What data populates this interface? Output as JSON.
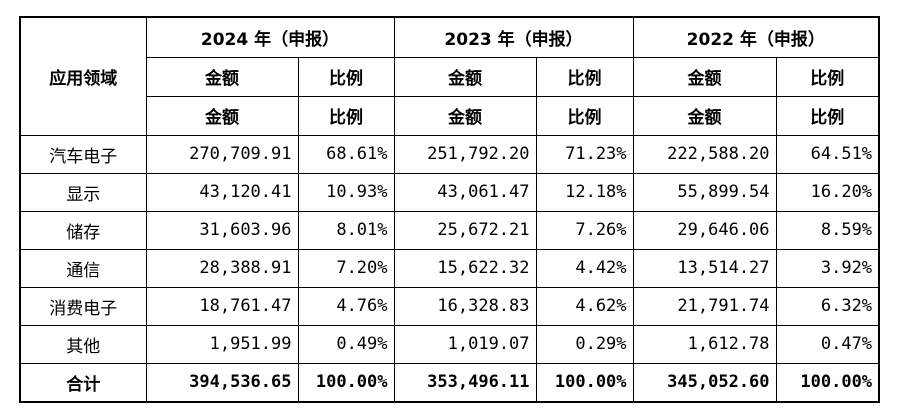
{
  "table": {
    "field_header": "应用领域",
    "years": [
      {
        "label": "2024 年（申报）"
      },
      {
        "label": "2023 年（申报）"
      },
      {
        "label": "2022 年（申报）"
      }
    ],
    "amount_label": "金额",
    "ratio_label": "比例",
    "rows": [
      {
        "field": "汽车电子",
        "v2024_amount": "270,709.91",
        "v2024_ratio": "68.61%",
        "v2023_amount": "251,792.20",
        "v2023_ratio": "71.23%",
        "v2022_amount": "222,588.20",
        "v2022_ratio": "64.51%"
      },
      {
        "field": "显示",
        "v2024_amount": "43,120.41",
        "v2024_ratio": "10.93%",
        "v2023_amount": "43,061.47",
        "v2023_ratio": "12.18%",
        "v2022_amount": "55,899.54",
        "v2022_ratio": "16.20%"
      },
      {
        "field": "储存",
        "v2024_amount": "31,603.96",
        "v2024_ratio": "8.01%",
        "v2023_amount": "25,672.21",
        "v2023_ratio": "7.26%",
        "v2022_amount": "29,646.06",
        "v2022_ratio": "8.59%"
      },
      {
        "field": "通信",
        "v2024_amount": "28,388.91",
        "v2024_ratio": "7.20%",
        "v2023_amount": "15,622.32",
        "v2023_ratio": "4.42%",
        "v2022_amount": "13,514.27",
        "v2022_ratio": "3.92%"
      },
      {
        "field": "消费电子",
        "v2024_amount": "18,761.47",
        "v2024_ratio": "4.76%",
        "v2023_amount": "16,328.83",
        "v2023_ratio": "4.62%",
        "v2022_amount": "21,791.74",
        "v2022_ratio": "6.32%"
      },
      {
        "field": "其他",
        "v2024_amount": "1,951.99",
        "v2024_ratio": "0.49%",
        "v2023_amount": "1,019.07",
        "v2023_ratio": "0.29%",
        "v2022_amount": "1,612.78",
        "v2022_ratio": "0.47%"
      }
    ],
    "total": {
      "field": "合计",
      "v2024_amount": "394,536.65",
      "v2024_ratio": "100.00%",
      "v2023_amount": "353,496.11",
      "v2023_ratio": "100.00%",
      "v2022_amount": "345,052.60",
      "v2022_ratio": "100.00%"
    }
  }
}
